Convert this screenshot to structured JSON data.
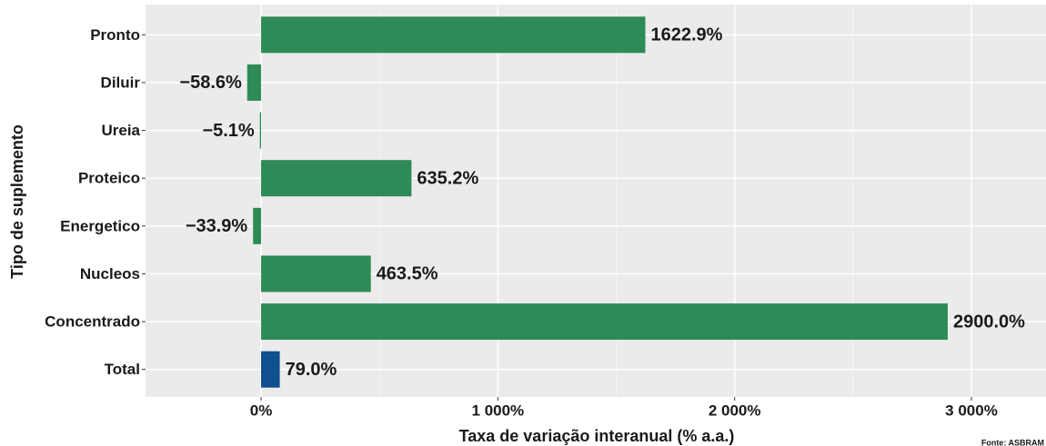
{
  "chart_data": {
    "type": "hbar",
    "x_label": "Taxa de variação interanual (% a.a.)",
    "y_label": "Tipo de suplemento",
    "caption": "Fonte: ASBRAM",
    "categories": [
      "Pronto",
      "Diluir",
      "Ureia",
      "Proteico",
      "Energetico",
      "Nucleos",
      "Concentrado",
      "Total"
    ],
    "values": [
      1622.9,
      -58.6,
      -5.1,
      635.2,
      -33.9,
      463.5,
      2900.0,
      79.0
    ],
    "value_labels": [
      "1622.9%",
      "−58.6%",
      "−5.1%",
      "635.2%",
      "−33.9%",
      "463.5%",
      "2900.0%",
      "79.0%"
    ],
    "colors": [
      "#2e8b57",
      "#2e8b57",
      "#2e8b57",
      "#2e8b57",
      "#2e8b57",
      "#2e8b57",
      "#2e8b57",
      "#11508f"
    ],
    "xlim": [
      -488,
      3315
    ],
    "xticks": [
      {
        "value": 0,
        "label": "0%"
      },
      {
        "value": 1000,
        "label": "1 000%"
      },
      {
        "value": 2000,
        "label": "2 000%"
      },
      {
        "value": 3000,
        "label": "3 000%"
      }
    ],
    "minor_xticks": [
      500,
      1500,
      2500
    ],
    "grid": true
  }
}
